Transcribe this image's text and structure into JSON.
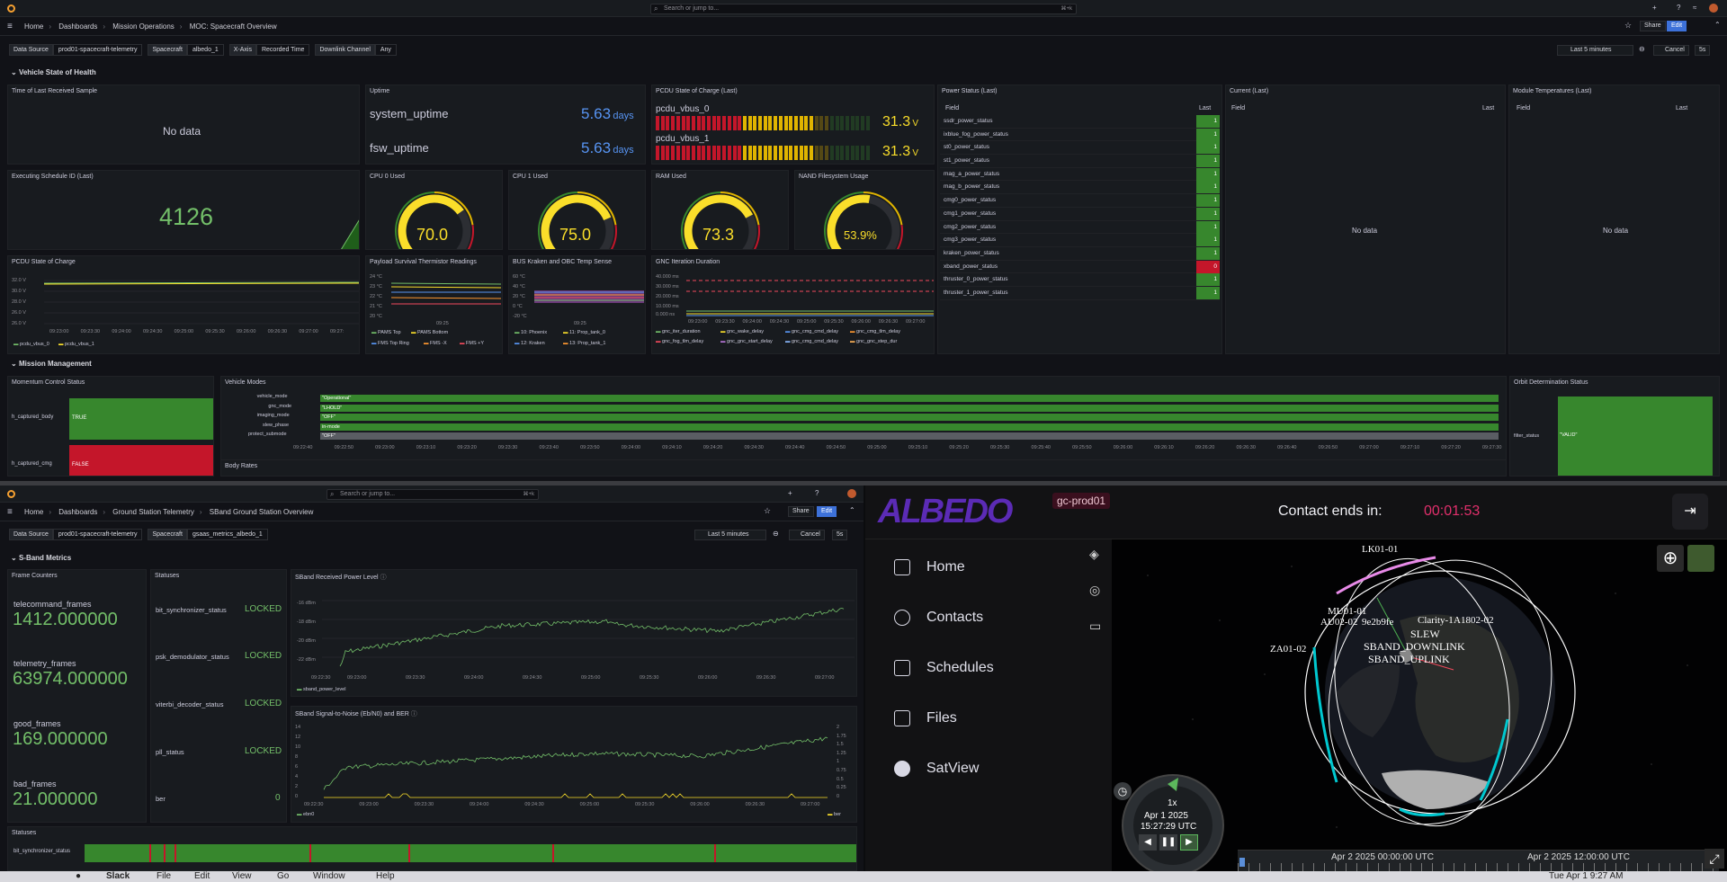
{
  "top": {
    "search_placeholder": "Search or jump to...",
    "search_kbd": "⌘+k",
    "breadcrumb": [
      "Home",
      "Dashboards",
      "Mission Operations",
      "MOC: Spacecraft Overview"
    ],
    "share": "Share",
    "edit": "Edit",
    "vars": [
      {
        "label": "Data Source",
        "value": "prod01-spacecraft-telemetry"
      },
      {
        "label": "Spacecraft",
        "value": "albedo_1"
      },
      {
        "label": "X-Axis",
        "value": "Recorded Time"
      },
      {
        "label": "Downlink Channel",
        "value": "Any"
      }
    ],
    "time_range": "Last 5 minutes",
    "cancel": "Cancel",
    "refresh": "5s",
    "row_vehicle": "Vehicle State of Health",
    "row_mission": "Mission Management",
    "panels": {
      "time_last": {
        "title": "Time of Last Received Sample",
        "value": "No data"
      },
      "uptime": {
        "title": "Uptime",
        "items": [
          {
            "name": "system_uptime",
            "value": "5.63",
            "unit": "days"
          },
          {
            "name": "fsw_uptime",
            "value": "5.63",
            "unit": "days"
          }
        ]
      },
      "pcdu_soc_last": {
        "title": "PCDU State of Charge (Last)",
        "items": [
          {
            "name": "pcdu_vbus_0",
            "value": "31.3",
            "unit": "V",
            "level": 0.72
          },
          {
            "name": "pcdu_vbus_1",
            "value": "31.3",
            "unit": "V",
            "level": 0.72
          }
        ]
      },
      "power_status": {
        "title": "Power Status (Last)",
        "col_field": "Field",
        "col_last": "Last",
        "rows": [
          {
            "name": "ssdr_power_status",
            "value": "1"
          },
          {
            "name": "ixblue_fog_power_status",
            "value": "1"
          },
          {
            "name": "st0_power_status",
            "value": "1"
          },
          {
            "name": "st1_power_status",
            "value": "1"
          },
          {
            "name": "mag_a_power_status",
            "value": "1"
          },
          {
            "name": "mag_b_power_status",
            "value": "1"
          },
          {
            "name": "cmg0_power_status",
            "value": "1"
          },
          {
            "name": "cmg1_power_status",
            "value": "1"
          },
          {
            "name": "cmg2_power_status",
            "value": "1"
          },
          {
            "name": "cmg3_power_status",
            "value": "1"
          },
          {
            "name": "kraken_power_status",
            "value": "1"
          },
          {
            "name": "xband_power_status",
            "value": "0"
          },
          {
            "name": "thruster_0_power_status",
            "value": "1"
          },
          {
            "name": "thruster_1_power_status",
            "value": "1"
          }
        ]
      },
      "current_last": {
        "title": "Current (Last)",
        "col_field": "Field",
        "col_last": "Last",
        "value": "No data"
      },
      "module_temps": {
        "title": "Module Temperatures (Last)",
        "col_field": "Field",
        "col_last": "Last",
        "value": "No data"
      },
      "exec_sched": {
        "title": "Executing Schedule ID (Last)",
        "value": "4126"
      },
      "cpu0": {
        "title": "CPU 0 Used",
        "value": "70.0",
        "level": 0.7
      },
      "cpu1": {
        "title": "CPU 1 Used",
        "value": "75.0",
        "level": 0.75
      },
      "ram": {
        "title": "RAM Used",
        "value": "73.3",
        "level": 0.733
      },
      "nand": {
        "title": "NAND Filesystem Usage",
        "value": "53.9%",
        "level": 0.539
      },
      "pcdu_soc": {
        "title": "PCDU State of Charge",
        "yticks": [
          "32.0 V",
          "30.0 V",
          "28.0 V",
          "26.0 V",
          "26.0 V"
        ],
        "xticks": [
          "09:23:00",
          "09:23:30",
          "09:24:00",
          "09:24:30",
          "09:25:00",
          "09:25:30",
          "09:26:00",
          "09:26:30",
          "09:27:00",
          "09:27:"
        ],
        "legend": [
          "pcdu_vbus_0",
          "pcdu_vbus_1"
        ]
      },
      "payload_therm": {
        "title": "Payload Survival Thermistor Readings",
        "yticks": [
          "24 °C",
          "23 °C",
          "22 °C",
          "21 °C",
          "20 °C"
        ],
        "xtick": "09:25",
        "legend": [
          "PAMS Top",
          "PAMS Bottom",
          "FMS Top Ring",
          "FMS -X",
          "FMS +Y"
        ]
      },
      "bus_temp": {
        "title": "BUS Kraken and OBC Temp Sense",
        "yticks": [
          "60 °C",
          "40 °C",
          "20 °C",
          "0 °C",
          "-20 °C"
        ],
        "xtick": "09:25",
        "legend": [
          "10: Phoenix",
          "11: Prop_tank_0",
          "12: Kraken",
          "13: Prop_tank_1"
        ]
      },
      "gnc": {
        "title": "GNC Iteration Duration",
        "yticks": [
          "40.000 ms",
          "30.000 ms",
          "20.000 ms",
          "10.000 ms",
          "0.000 ns"
        ],
        "xticks": [
          "09:23:00",
          "09:23:30",
          "09:24:00",
          "09:24:30",
          "09:25:00",
          "09:25:30",
          "09:26:00",
          "09:26:30",
          "09:27:00"
        ],
        "legend": [
          "gnc_iter_duration",
          "gnc_wake_delay",
          "gnc_cmg_cmd_delay",
          "gnc_cmg_tlm_delay",
          "gnc_fog_tlm_delay",
          "gnc_gnc_start_delay",
          "gnc_cmg_cmd_delay",
          "gnc_gnc_step_dur"
        ]
      },
      "momentum": {
        "title": "Momentum Control Status",
        "rows": [
          {
            "name": "h_captured_body",
            "value": "TRUE"
          },
          {
            "name": "h_captured_cmg",
            "value": "FALSE"
          }
        ]
      },
      "vehicle_modes": {
        "title": "Vehicle Modes",
        "rows": [
          {
            "name": "vehicle_mode",
            "value": "\"Operational\""
          },
          {
            "name": "gnc_mode",
            "value": "\"LHOLD\""
          },
          {
            "name": "imaging_mode",
            "value": "\"OFF\""
          },
          {
            "name": "slew_phase",
            "value": "in-mode"
          },
          {
            "name": "protect_submode",
            "value": "\"OFF\""
          }
        ],
        "xticks": [
          "09:22:40",
          "09:22:50",
          "09:23:00",
          "09:23:10",
          "09:23:20",
          "09:23:30",
          "09:23:40",
          "09:23:50",
          "09:24:00",
          "09:24:10",
          "09:24:20",
          "09:24:30",
          "09:24:40",
          "09:24:50",
          "09:25:00",
          "09:25:10",
          "09:25:20",
          "09:25:30",
          "09:25:40",
          "09:25:50",
          "09:26:00",
          "09:26:10",
          "09:26:20",
          "09:26:30",
          "09:26:40",
          "09:26:50",
          "09:27:00",
          "09:27:10",
          "09:27:20",
          "09:27:30"
        ]
      },
      "orbit": {
        "title": "Orbit Determination Status",
        "field": "filter_status",
        "value": "\"VALID\""
      },
      "body_rates": {
        "title": "Body Rates"
      }
    }
  },
  "ground": {
    "search_placeholder": "Search or jump to...",
    "search_kbd": "⌘+k",
    "breadcrumb": [
      "Home",
      "Dashboards",
      "Ground Station Telemetry",
      "SBand Ground Station Overview"
    ],
    "share": "Share",
    "edit": "Edit",
    "vars": [
      {
        "label": "Data Source",
        "value": "prod01-spacecraft-telemetry"
      },
      {
        "label": "Spacecraft",
        "value": "gsaas_metrics_albedo_1"
      }
    ],
    "time_range": "Last 5 minutes",
    "cancel": "Cancel",
    "refresh": "5s",
    "row_sband": "S-Band Metrics",
    "frame_counters": {
      "title": "Frame Counters",
      "items": [
        {
          "name": "telecommand_frames",
          "value": "1412.000000"
        },
        {
          "name": "telemetry_frames",
          "value": "63974.000000"
        },
        {
          "name": "good_frames",
          "value": "169.000000"
        },
        {
          "name": "bad_frames",
          "value": "21.000000"
        }
      ]
    },
    "statuses": {
      "title": "Statuses",
      "items": [
        {
          "name": "bit_synchronizer_status",
          "value": "LOCKED"
        },
        {
          "name": "psk_demodulator_status",
          "value": "LOCKED"
        },
        {
          "name": "viterbi_decoder_status",
          "value": "LOCKED"
        },
        {
          "name": "pll_status",
          "value": "LOCKED"
        },
        {
          "name": "ber",
          "value": "0"
        }
      ]
    },
    "power_level": {
      "title": "SBand Received Power Level",
      "yticks": [
        "-16 dBm",
        "-18 dBm",
        "-20 dBm",
        "-22 dBm"
      ],
      "xticks": [
        "09:23:00",
        "09:23:30",
        "09:24:00",
        "09:24:30",
        "09:25:00",
        "09:25:30",
        "09:26:00",
        "09:26:30",
        "09:27:00"
      ],
      "xfirst": "09:22:30",
      "legend": "sband_power_level"
    },
    "snr": {
      "title": "SBand Signal-to-Noise (Eb/N0) and BER",
      "yticks": [
        "14",
        "12",
        "10",
        "8",
        "6",
        "4",
        "2",
        "0"
      ],
      "yticks_r": [
        "2",
        "1.75",
        "1.5",
        "1.25",
        "1",
        "0.75",
        "0.5",
        "0.25",
        "0"
      ],
      "xticks": [
        "09:22:30",
        "09:23:00",
        "09:23:30",
        "09:24:00",
        "09:24:30",
        "09:25:00",
        "09:25:30",
        "09:26:00",
        "09:26:30",
        "09:27:00"
      ],
      "legend_l": "ebn0",
      "legend_r": "ber"
    },
    "statuses_bottom": {
      "title": "Statuses",
      "row": "bit_synchronizer_status"
    }
  },
  "albedo": {
    "logo": "ALBEDO",
    "env": "gc-prod01",
    "contact_label": "Contact ends in:",
    "contact_time": "00:01:53",
    "nav": [
      "Home",
      "Contacts",
      "Schedules",
      "Files",
      "SatView"
    ],
    "sat_labels": [
      "LK01-01",
      "MU01-01",
      "AU02-02",
      "9e2b9fe",
      "Clarity-1",
      "A1802-02",
      "ZA01-02"
    ],
    "activity": [
      "SLEW",
      "SBAND_DOWNLINK",
      "SBAND_UPLINK"
    ],
    "speed": "1x",
    "clock_date": "Apr 1 2025",
    "clock_time": "15:27:29 UTC",
    "timeline_start": "Apr 2 2025 00:00:00 UTC",
    "timeline_end": "Apr 2 2025 12:00:00 UTC"
  },
  "dock": {
    "menu": [
      "Slack",
      "File",
      "Edit",
      "View",
      "Go",
      "Window",
      "Help"
    ],
    "clock": "Tue Apr 1 9:27 AM"
  },
  "colors": {
    "green": "#73bf69",
    "yellow": "#fade2a",
    "red": "#f2495c",
    "blue": "#5794f2",
    "accent": "#e02f6b"
  }
}
